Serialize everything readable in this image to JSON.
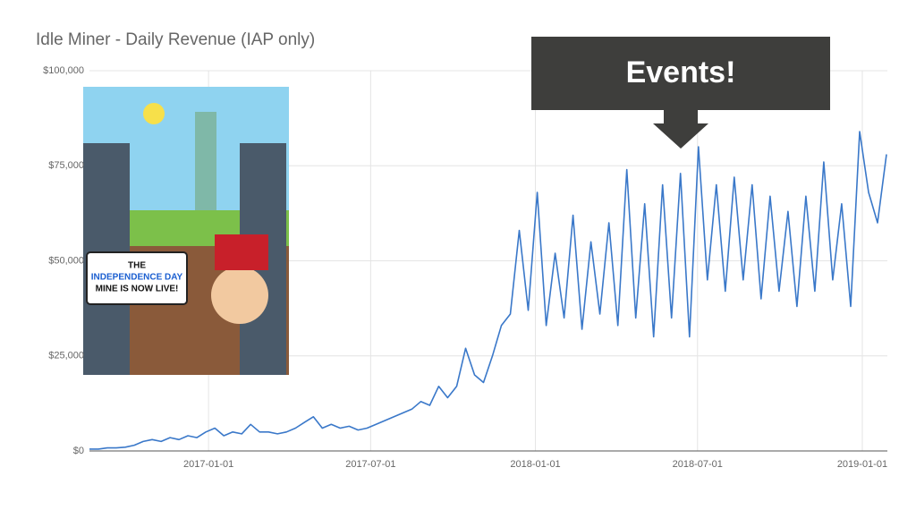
{
  "chart_data": {
    "type": "line",
    "title": "Idle Miner - Daily Revenue (IAP only)",
    "annotation": "Events!",
    "image_text": [
      "THE",
      "INDEPENDENCE DAY",
      "MINE IS NOW LIVE!"
    ],
    "x": [
      "2016-08-21",
      "2016-08-31",
      "2016-09-10",
      "2016-09-20",
      "2016-09-30",
      "2016-10-10",
      "2016-10-20",
      "2016-10-30",
      "2016-11-09",
      "2016-11-19",
      "2016-11-29",
      "2016-12-09",
      "2016-12-19",
      "2016-12-29",
      "2017-01-08",
      "2017-01-18",
      "2017-01-28",
      "2017-02-07",
      "2017-02-17",
      "2017-02-27",
      "2017-03-09",
      "2017-03-19",
      "2017-03-29",
      "2017-04-08",
      "2017-04-18",
      "2017-04-28",
      "2017-05-08",
      "2017-05-18",
      "2017-05-28",
      "2017-06-07",
      "2017-06-17",
      "2017-06-27",
      "2017-07-07",
      "2017-07-17",
      "2017-07-27",
      "2017-08-06",
      "2017-08-16",
      "2017-08-26",
      "2017-09-05",
      "2017-09-15",
      "2017-09-25",
      "2017-10-05",
      "2017-10-15",
      "2017-10-25",
      "2017-11-04",
      "2017-11-14",
      "2017-11-24",
      "2017-12-04",
      "2017-12-14",
      "2017-12-24",
      "2018-01-03",
      "2018-01-13",
      "2018-01-23",
      "2018-02-02",
      "2018-02-12",
      "2018-02-22",
      "2018-03-04",
      "2018-03-14",
      "2018-03-24",
      "2018-04-03",
      "2018-04-13",
      "2018-04-23",
      "2018-05-03",
      "2018-05-13",
      "2018-05-23",
      "2018-06-02",
      "2018-06-12",
      "2018-06-22",
      "2018-07-02",
      "2018-07-12",
      "2018-07-22",
      "2018-08-01",
      "2018-08-11",
      "2018-08-21",
      "2018-08-31",
      "2018-09-10",
      "2018-09-20",
      "2018-09-30",
      "2018-10-10",
      "2018-10-20",
      "2018-10-30",
      "2018-11-09",
      "2018-11-19",
      "2018-11-29",
      "2018-12-09",
      "2018-12-19",
      "2018-12-29",
      "2019-01-08",
      "2019-01-18",
      "2019-01-28"
    ],
    "series": [
      {
        "name": "Daily Revenue",
        "color": "#3a78c9",
        "values": [
          500,
          500,
          800,
          800,
          1000,
          1500,
          2500,
          3000,
          2500,
          3500,
          3000,
          4000,
          3500,
          5000,
          6000,
          4000,
          5000,
          4500,
          7000,
          5000,
          5000,
          4500,
          5000,
          6000,
          7500,
          9000,
          6000,
          7000,
          6000,
          6500,
          5500,
          6000,
          7000,
          8000,
          9000,
          10000,
          11000,
          13000,
          12000,
          17000,
          14000,
          17000,
          27000,
          20000,
          18000,
          25000,
          33000,
          36000,
          58000,
          37000,
          68000,
          33000,
          52000,
          35000,
          62000,
          32000,
          55000,
          36000,
          60000,
          33000,
          74000,
          35000,
          65000,
          30000,
          70000,
          35000,
          73000,
          30000,
          80000,
          45000,
          70000,
          42000,
          72000,
          45000,
          70000,
          40000,
          67000,
          42000,
          63000,
          38000,
          67000,
          42000,
          76000,
          45000,
          65000,
          38000,
          84000,
          68000,
          60000,
          78000
        ]
      }
    ],
    "xlim": [
      "2016-08-21",
      "2019-01-29"
    ],
    "xticks": [
      "2017-01-01",
      "2017-07-01",
      "2018-01-01",
      "2018-07-01",
      "2019-01-01"
    ],
    "ylim": [
      0,
      100000
    ],
    "yticks": [
      {
        "value": 0,
        "label": "$0"
      },
      {
        "value": 25000,
        "label": "$25,000"
      },
      {
        "value": 50000,
        "label": "$50,000"
      },
      {
        "value": 75000,
        "label": "$75,000"
      },
      {
        "value": 100000,
        "label": "$100,000"
      }
    ],
    "grid": true
  }
}
